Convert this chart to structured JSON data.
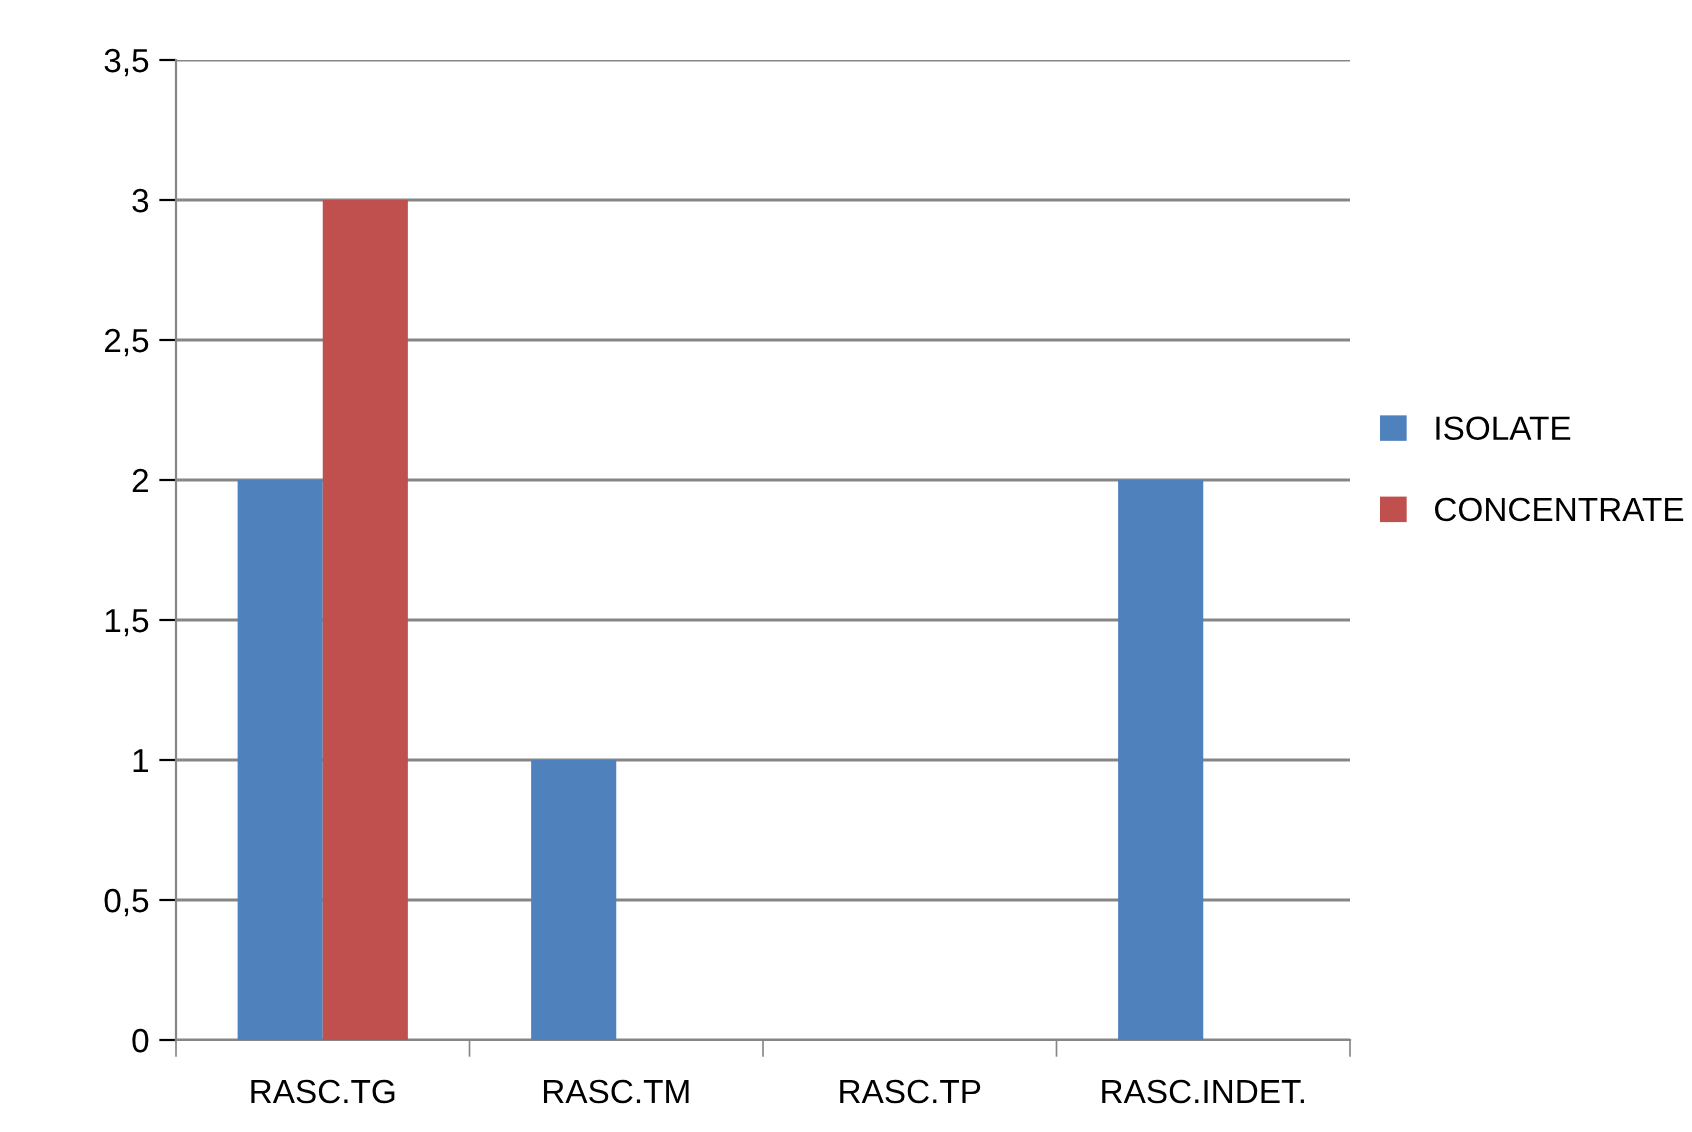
{
  "chart_data": {
    "type": "bar",
    "categories": [
      "RASC.TG",
      "RASC.TM",
      "RASC.TP",
      "RASC.INDET."
    ],
    "series": [
      {
        "name": "ISOLATE",
        "color": "#4f81bd",
        "values": [
          2,
          1,
          0,
          2
        ]
      },
      {
        "name": "CONCENTRATE",
        "color": "#c0504d",
        "values": [
          3,
          0,
          0,
          0
        ]
      }
    ],
    "ylim": [
      0,
      3.5
    ],
    "yticks": [
      0,
      {
        "value": 0.5,
        "label": "0,5"
      },
      1,
      {
        "value": 1.5,
        "label": "1,5"
      },
      2,
      {
        "value": 2.5,
        "label": "2,5"
      },
      3,
      {
        "value": 3.5,
        "label": "3,5"
      }
    ],
    "grid": "y",
    "legend": "right"
  }
}
